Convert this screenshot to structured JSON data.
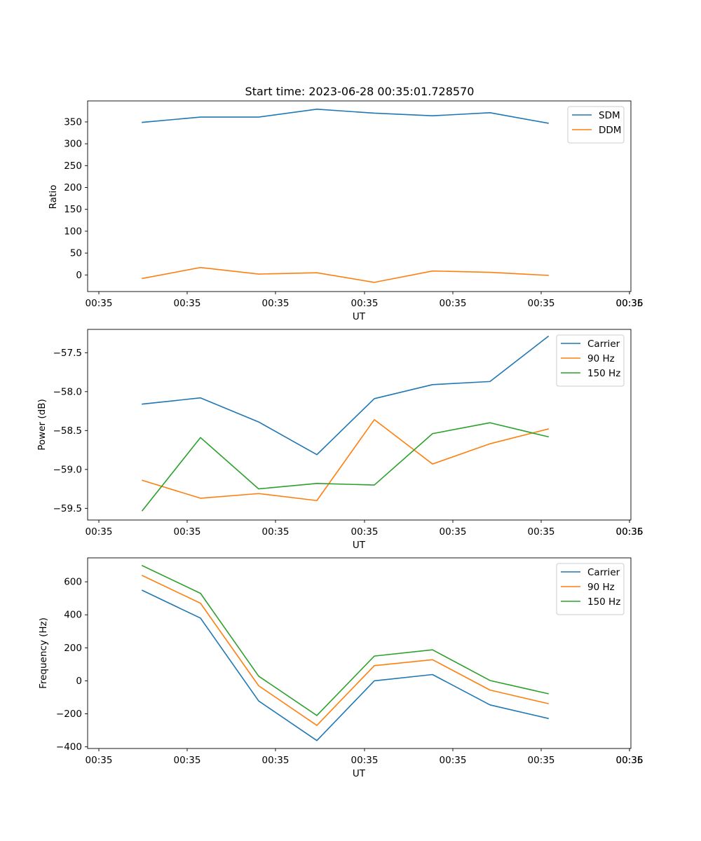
{
  "chart_data": [
    {
      "type": "line",
      "title": "Start time: 2023-06-28 00:35:01.728570",
      "xlabel": "UT",
      "ylabel": "Ratio",
      "x_tick_labels": [
        "00:35",
        "00:35",
        "00:35",
        "00:35",
        "00:35",
        "00:35",
        "00:35"
      ],
      "x_tick_label_end": "00:36",
      "ylim": [
        -38,
        398
      ],
      "yticks": [
        0,
        50,
        100,
        150,
        200,
        250,
        300,
        350
      ],
      "yticklabels": [
        "0",
        "50",
        "100",
        "150",
        "200",
        "250",
        "300",
        "350"
      ],
      "legend": "top-right",
      "series": [
        {
          "name": "SDM",
          "color": "#1f77b4",
          "values": [
            349,
            361,
            361,
            379,
            370,
            364,
            371,
            347
          ]
        },
        {
          "name": "DDM",
          "color": "#ff7f0e",
          "values": [
            -8,
            17,
            2,
            5,
            -17,
            9,
            6,
            -1
          ]
        }
      ]
    },
    {
      "type": "line",
      "title": "",
      "xlabel": "UT",
      "ylabel": "Power (dB)",
      "x_tick_labels": [
        "00:35",
        "00:35",
        "00:35",
        "00:35",
        "00:35",
        "00:35",
        "00:35"
      ],
      "x_tick_label_end": "00:36",
      "ylim": [
        -59.65,
        -57.2
      ],
      "yticks": [
        -59.5,
        -59.0,
        -58.5,
        -58.0,
        -57.5
      ],
      "yticklabels": [
        "−59.5",
        "−59.0",
        "−58.5",
        "−58.0",
        "−57.5"
      ],
      "legend": "top-right",
      "series": [
        {
          "name": "Carrier",
          "color": "#1f77b4",
          "values": [
            -58.16,
            -58.08,
            -58.39,
            -58.81,
            -58.09,
            -57.91,
            -57.87,
            -57.29
          ]
        },
        {
          "name": "90 Hz",
          "color": "#ff7f0e",
          "values": [
            -59.14,
            -59.37,
            -59.31,
            -59.4,
            -58.36,
            -58.93,
            -58.67,
            -58.48
          ]
        },
        {
          "name": "150 Hz",
          "color": "#2ca02c",
          "values": [
            -59.53,
            -58.59,
            -59.25,
            -59.18,
            -59.2,
            -58.54,
            -58.4,
            -58.58
          ]
        }
      ]
    },
    {
      "type": "line",
      "title": "",
      "xlabel": "UT",
      "ylabel": "Frequency (Hz)",
      "x_tick_labels": [
        "00:35",
        "00:35",
        "00:35",
        "00:35",
        "00:35",
        "00:35",
        "00:35"
      ],
      "x_tick_label_end": "00:36",
      "ylim": [
        -410,
        745
      ],
      "yticks": [
        -400,
        -200,
        0,
        200,
        400,
        600
      ],
      "yticklabels": [
        "−400",
        "−200",
        "0",
        "200",
        "400",
        "600"
      ],
      "legend": "top-right",
      "series": [
        {
          "name": "Carrier",
          "color": "#1f77b4",
          "values": [
            548,
            380,
            -122,
            -362,
            0,
            38,
            -146,
            -228
          ]
        },
        {
          "name": "90 Hz",
          "color": "#ff7f0e",
          "values": [
            638,
            470,
            -30,
            -270,
            92,
            128,
            -56,
            -138
          ]
        },
        {
          "name": "150 Hz",
          "color": "#2ca02c",
          "values": [
            698,
            530,
            28,
            -210,
            150,
            188,
            2,
            -78
          ]
        }
      ]
    }
  ]
}
